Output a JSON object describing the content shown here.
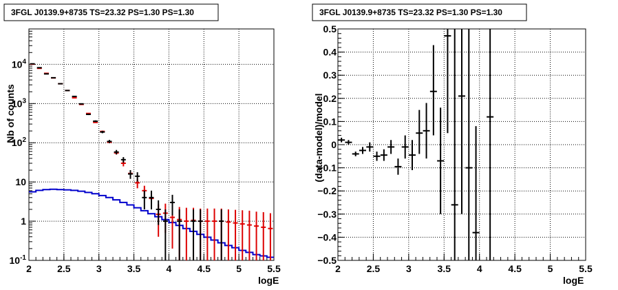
{
  "chart_data": [
    {
      "type": "line",
      "title": "3FGL J0139.9+8735 TS=23.32 PS=1.30 PS=1.30",
      "xlabel": "logE",
      "ylabel": "Nb of counts",
      "xlim": [
        2,
        5.5
      ],
      "ylim": [
        0.1,
        80000
      ],
      "ylog": true,
      "grid": true,
      "x_ticks": [
        "2",
        "2.5",
        "3",
        "3.5",
        "4",
        "4.5",
        "5",
        "5.5"
      ],
      "y_ticks": [
        {
          "label": "10",
          "sup": "4",
          "value": 10000
        },
        {
          "label": "10",
          "sup": "3",
          "value": 1000
        },
        {
          "label": "10",
          "sup": "2",
          "value": 100
        },
        {
          "label": "10",
          "sup": "",
          "value": 10
        },
        {
          "label": "1",
          "sup": "",
          "value": 1
        },
        {
          "label": "10",
          "sup": "-1",
          "value": 0.1
        }
      ],
      "series": [
        {
          "role": "data",
          "color": "#000000",
          "points": [
            {
              "x": 2.05,
              "y": 10300,
              "lo": 10100,
              "hi": 10500
            },
            {
              "x": 2.15,
              "y": 8200,
              "lo": 8050,
              "hi": 8350
            },
            {
              "x": 2.25,
              "y": 5700,
              "lo": 5580,
              "hi": 5820
            },
            {
              "x": 2.35,
              "y": 4550,
              "lo": 4450,
              "hi": 4650
            },
            {
              "x": 2.45,
              "y": 3200,
              "lo": 3120,
              "hi": 3280
            },
            {
              "x": 2.55,
              "y": 2150,
              "lo": 2090,
              "hi": 2210
            },
            {
              "x": 2.65,
              "y": 1520,
              "lo": 1480,
              "hi": 1560
            },
            {
              "x": 2.75,
              "y": 980,
              "lo": 945,
              "hi": 1015
            },
            {
              "x": 2.85,
              "y": 530,
              "lo": 508,
              "hi": 552
            },
            {
              "x": 2.95,
              "y": 355,
              "lo": 337,
              "hi": 373
            },
            {
              "x": 3.05,
              "y": 188,
              "lo": 175,
              "hi": 201
            },
            {
              "x": 3.15,
              "y": 108,
              "lo": 98,
              "hi": 118
            },
            {
              "x": 3.25,
              "y": 58,
              "lo": 50.5,
              "hi": 65.5
            },
            {
              "x": 3.35,
              "y": 37,
              "lo": 31,
              "hi": 43
            },
            {
              "x": 3.45,
              "y": 16,
              "lo": 12,
              "hi": 20
            },
            {
              "x": 3.55,
              "y": 14,
              "lo": 10.3,
              "hi": 17.7
            },
            {
              "x": 3.65,
              "y": 4,
              "lo": 2,
              "hi": 6
            },
            {
              "x": 3.75,
              "y": 4,
              "lo": 2,
              "hi": 6
            },
            {
              "x": 3.85,
              "y": 2,
              "lo": 0.8,
              "hi": 3.4
            },
            {
              "x": 3.95,
              "y": 1,
              "lo": 0.1,
              "hi": 2
            },
            {
              "x": 4.05,
              "y": 3,
              "lo": 1.4,
              "hi": 4.7
            },
            {
              "x": 4.15,
              "y": 1,
              "lo": 0.1,
              "hi": 2
            },
            {
              "x": 4.35,
              "y": 1,
              "lo": 0.1,
              "hi": 2
            },
            {
              "x": 4.45,
              "y": 1,
              "lo": 0.1,
              "hi": 2
            },
            {
              "x": 4.75,
              "y": 1,
              "lo": 0.1,
              "hi": 2
            }
          ]
        },
        {
          "role": "model",
          "color": "#dd0000",
          "points": [
            {
              "x": 2.05,
              "y": 10100,
              "lo": 10000,
              "hi": 10200
            },
            {
              "x": 2.15,
              "y": 7900,
              "lo": 7820,
              "hi": 7980
            },
            {
              "x": 2.25,
              "y": 5900,
              "lo": 5840,
              "hi": 5960
            },
            {
              "x": 2.35,
              "y": 4500,
              "lo": 4450,
              "hi": 4550
            },
            {
              "x": 2.45,
              "y": 3200,
              "lo": 3160,
              "hi": 3240
            },
            {
              "x": 2.55,
              "y": 2150,
              "lo": 2120,
              "hi": 2180
            },
            {
              "x": 2.65,
              "y": 1400,
              "lo": 1380,
              "hi": 1420
            },
            {
              "x": 2.75,
              "y": 950,
              "lo": 935,
              "hi": 965
            },
            {
              "x": 2.85,
              "y": 560,
              "lo": 548,
              "hi": 572
            },
            {
              "x": 2.95,
              "y": 330,
              "lo": 320,
              "hi": 340
            },
            {
              "x": 3.05,
              "y": 195,
              "lo": 187,
              "hi": 203
            },
            {
              "x": 3.15,
              "y": 103,
              "lo": 97,
              "hi": 109
            },
            {
              "x": 3.25,
              "y": 55,
              "lo": 50,
              "hi": 60
            },
            {
              "x": 3.35,
              "y": 30,
              "lo": 25,
              "hi": 35
            },
            {
              "x": 3.45,
              "y": 16.5,
              "lo": 13,
              "hi": 20
            },
            {
              "x": 3.55,
              "y": 9.5,
              "lo": 6.9,
              "hi": 12.1
            },
            {
              "x": 3.65,
              "y": 6,
              "lo": 4,
              "hi": 8
            },
            {
              "x": 3.75,
              "y": 3.8,
              "lo": 2.3,
              "hi": 5.3
            },
            {
              "x": 3.85,
              "y": 1.5,
              "lo": 0.4,
              "hi": 2.7
            },
            {
              "x": 3.95,
              "y": 1.6,
              "lo": 0.5,
              "hi": 2.8
            },
            {
              "x": 4.05,
              "y": 1.25,
              "lo": 0.2,
              "hi": 2.5
            },
            {
              "x": 4.15,
              "y": 1.1,
              "lo": 0.1,
              "hi": 2.3
            },
            {
              "x": 4.25,
              "y": 1.0,
              "lo": 0.1,
              "hi": 2.2
            },
            {
              "x": 4.35,
              "y": 1.05,
              "lo": 0.1,
              "hi": 2.2
            },
            {
              "x": 4.45,
              "y": 1.0,
              "lo": 0.1,
              "hi": 2.1
            },
            {
              "x": 4.55,
              "y": 1.0,
              "lo": 0.1,
              "hi": 2.1
            },
            {
              "x": 4.65,
              "y": 1.0,
              "lo": 0.1,
              "hi": 2.1
            },
            {
              "x": 4.75,
              "y": 1.0,
              "lo": 0.1,
              "hi": 2.1
            },
            {
              "x": 4.85,
              "y": 0.95,
              "lo": 0.1,
              "hi": 2.0
            },
            {
              "x": 4.95,
              "y": 0.9,
              "lo": 0.1,
              "hi": 1.95
            },
            {
              "x": 5.05,
              "y": 0.85,
              "lo": 0.1,
              "hi": 1.9
            },
            {
              "x": 5.15,
              "y": 0.8,
              "lo": 0.1,
              "hi": 1.85
            },
            {
              "x": 5.25,
              "y": 0.75,
              "lo": 0.1,
              "hi": 1.75
            },
            {
              "x": 5.35,
              "y": 0.7,
              "lo": 0.1,
              "hi": 1.7
            },
            {
              "x": 5.45,
              "y": 0.65,
              "lo": 0.1,
              "hi": 1.6
            }
          ]
        },
        {
          "role": "source",
          "color": "#0000cc",
          "bin_edges": [
            2.0,
            2.1,
            2.2,
            2.3,
            2.4,
            2.5,
            2.6,
            2.7,
            2.8,
            2.9,
            3.0,
            3.1,
            3.2,
            3.3,
            3.4,
            3.5,
            3.6,
            3.7,
            3.8,
            3.9,
            4.0,
            4.1,
            4.2,
            4.3,
            4.4,
            4.5,
            4.6,
            4.7,
            4.8,
            4.9,
            5.0,
            5.1,
            5.2,
            5.3,
            5.4,
            5.5
          ],
          "values": [
            5.6,
            6.1,
            6.4,
            6.5,
            6.4,
            6.3,
            6.1,
            5.8,
            5.4,
            5.0,
            4.5,
            4.0,
            3.5,
            3.0,
            2.6,
            2.2,
            1.85,
            1.55,
            1.3,
            1.1,
            0.92,
            0.78,
            0.65,
            0.55,
            0.46,
            0.39,
            0.33,
            0.28,
            0.24,
            0.21,
            0.18,
            0.16,
            0.14,
            0.13,
            0.12
          ]
        }
      ]
    },
    {
      "type": "scatter",
      "title": "3FGL J0139.9+8735 TS=23.32 PS=1.30 PS=1.30",
      "xlabel": "logE",
      "ylabel": "(data-model)/model",
      "xlim": [
        2,
        5.5
      ],
      "ylim": [
        -0.5,
        0.5
      ],
      "grid": true,
      "x_ticks": [
        "2",
        "2.5",
        "3",
        "3.5",
        "4",
        "4.5",
        "5",
        "5.5"
      ],
      "y_ticks": [
        "0.5",
        "0.4",
        "0.3",
        "0.2",
        "0.1",
        "0",
        "-0.1",
        "-0.2",
        "-0.3",
        "-0.4",
        "-0.5"
      ],
      "series": [
        {
          "color": "#000000",
          "points": [
            {
              "x": 2.05,
              "y": 0.02,
              "lo": 0.01,
              "hi": 0.03
            },
            {
              "x": 2.15,
              "y": 0.01,
              "lo": 0.0,
              "hi": 0.02
            },
            {
              "x": 2.25,
              "y": -0.04,
              "lo": -0.05,
              "hi": -0.03
            },
            {
              "x": 2.35,
              "y": -0.025,
              "lo": -0.04,
              "hi": -0.01
            },
            {
              "x": 2.45,
              "y": -0.01,
              "lo": -0.03,
              "hi": 0.01
            },
            {
              "x": 2.55,
              "y": -0.05,
              "lo": -0.07,
              "hi": -0.03
            },
            {
              "x": 2.65,
              "y": -0.045,
              "lo": -0.07,
              "hi": -0.02
            },
            {
              "x": 2.75,
              "y": -0.01,
              "lo": -0.04,
              "hi": 0.02
            },
            {
              "x": 2.85,
              "y": -0.095,
              "lo": -0.13,
              "hi": -0.06
            },
            {
              "x": 2.95,
              "y": -0.01,
              "lo": -0.06,
              "hi": 0.04
            },
            {
              "x": 3.05,
              "y": -0.045,
              "lo": -0.11,
              "hi": 0.02
            },
            {
              "x": 3.15,
              "y": 0.05,
              "lo": -0.04,
              "hi": 0.15
            },
            {
              "x": 3.25,
              "y": 0.06,
              "lo": -0.06,
              "hi": 0.18
            },
            {
              "x": 3.35,
              "y": 0.23,
              "lo": 0.04,
              "hi": 0.43
            },
            {
              "x": 3.45,
              "y": -0.07,
              "lo": -0.3,
              "hi": 0.16
            },
            {
              "x": 3.55,
              "y": 0.47,
              "lo": 0.05,
              "hi": 0.5
            },
            {
              "x": 3.65,
              "y": -0.26,
              "lo": -0.5,
              "hi": 0.5
            },
            {
              "x": 3.75,
              "y": 0.21,
              "lo": -0.3,
              "hi": 0.5
            },
            {
              "x": 3.85,
              "y": -0.1,
              "lo": -0.5,
              "hi": 0.5
            },
            {
              "x": 3.95,
              "y": -0.38,
              "lo": -0.5,
              "hi": 0.08
            },
            {
              "x": 4.15,
              "y": 0.12,
              "lo": -0.5,
              "hi": 0.5
            }
          ]
        }
      ]
    }
  ]
}
